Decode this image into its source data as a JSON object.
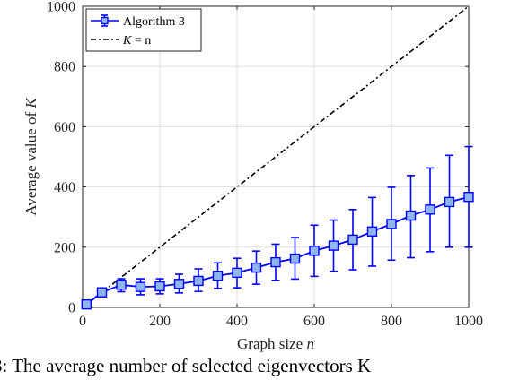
{
  "chart_data": {
    "type": "line",
    "xlabel_text": "Graph size ",
    "xlabel_var": "n",
    "ylabel_text": "Average value of ",
    "ylabel_var": "K",
    "xlim": [
      0,
      1000
    ],
    "ylim": [
      0,
      1000
    ],
    "xticks": [
      0,
      200,
      400,
      600,
      800,
      1000
    ],
    "yticks": [
      0,
      200,
      400,
      600,
      800,
      1000
    ],
    "grid": true,
    "legend_position": "top-left",
    "series": [
      {
        "name": "Algorithm 3",
        "style": "errorbar-square",
        "color": "#0000ff",
        "fill": "#8fb6f0",
        "x": [
          10,
          50,
          100,
          150,
          200,
          250,
          300,
          350,
          400,
          450,
          500,
          550,
          600,
          650,
          700,
          750,
          800,
          850,
          900,
          950,
          1000
        ],
        "y": [
          10,
          50,
          75,
          68,
          70,
          78,
          88,
          105,
          115,
          132,
          150,
          162,
          188,
          205,
          225,
          252,
          277,
          305,
          325,
          350,
          367
        ],
        "err_low": [
          3,
          5,
          23,
          26,
          25,
          30,
          35,
          42,
          50,
          55,
          60,
          68,
          85,
          85,
          100,
          115,
          120,
          140,
          140,
          150,
          167
        ],
        "err_high": [
          3,
          5,
          20,
          27,
          25,
          32,
          40,
          43,
          48,
          55,
          60,
          70,
          85,
          85,
          100,
          113,
          122,
          133,
          138,
          155,
          167
        ]
      },
      {
        "name_prefix": "K",
        "name_suffix": " = n",
        "style": "dash-dot",
        "color": "#000000",
        "x": [
          0,
          1000
        ],
        "y": [
          0,
          1000
        ]
      }
    ]
  },
  "caption": "3: The average number of selected eigenvectors K"
}
